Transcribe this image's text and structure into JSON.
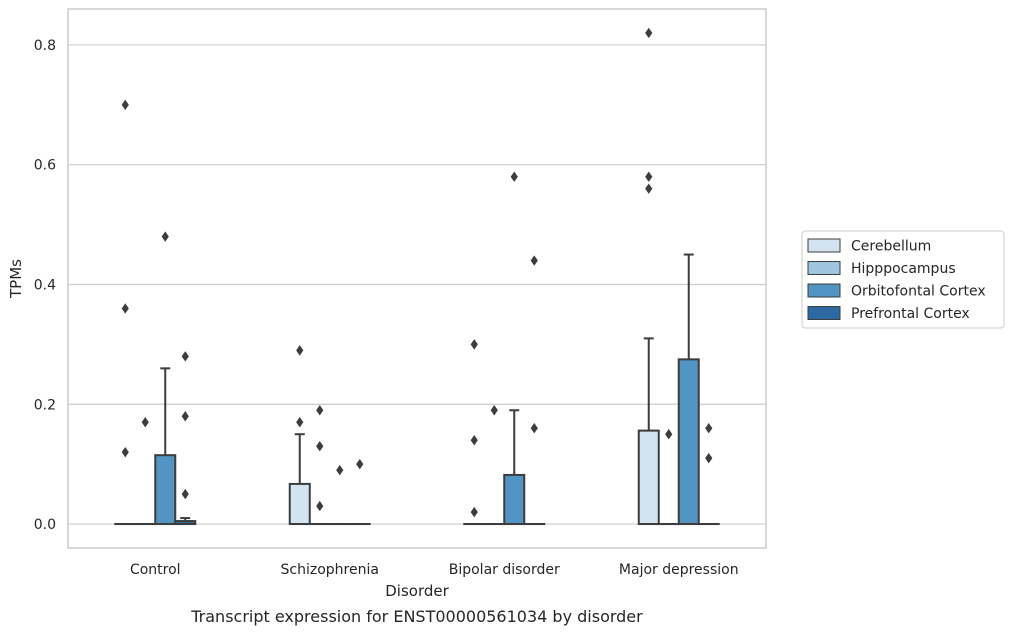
{
  "chart_data": {
    "type": "box",
    "caption": "Transcript expression for ENST00000561034 by disorder",
    "xlabel": "Disorder",
    "ylabel": "TPMs",
    "ylim": [
      -0.04,
      0.86
    ],
    "yticks": [
      "0.0",
      "0.2",
      "0.4",
      "0.6",
      "0.8"
    ],
    "grid": true,
    "legend_position": "right",
    "categories": [
      "Control",
      "Schizophrenia",
      "Bipolar disorder",
      "Major depression"
    ],
    "series": [
      {
        "name": "Cerebellum",
        "color": "#d4e3f2",
        "boxes": [
          {
            "q1": 0,
            "median": 0,
            "q3": 0,
            "whisker_low": 0,
            "whisker_high": 0,
            "outliers": [
              0.7,
              0.36,
              0.12
            ]
          },
          {
            "q1": 0,
            "median": 0,
            "q3": 0.067,
            "whisker_low": 0,
            "whisker_high": 0.15,
            "outliers": [
              0.29,
              0.17
            ]
          },
          {
            "q1": 0,
            "median": 0,
            "q3": 0,
            "whisker_low": 0,
            "whisker_high": 0,
            "outliers": [
              0.3,
              0.14,
              0.02
            ]
          },
          {
            "q1": 0,
            "median": 0,
            "q3": 0.156,
            "whisker_low": 0,
            "whisker_high": 0.31,
            "outliers": [
              0.82,
              0.58,
              0.56
            ]
          }
        ]
      },
      {
        "name": "Hipppocampus",
        "color": "#9fc4de",
        "boxes": [
          {
            "q1": 0,
            "median": 0,
            "q3": 0,
            "whisker_low": 0,
            "whisker_high": 0,
            "outliers": [
              0.17
            ]
          },
          {
            "q1": 0,
            "median": 0,
            "q3": 0,
            "whisker_low": 0,
            "whisker_high": 0,
            "outliers": [
              0.19,
              0.13,
              0.03
            ]
          },
          {
            "q1": 0,
            "median": 0,
            "q3": 0,
            "whisker_low": 0,
            "whisker_high": 0,
            "outliers": [
              0.19
            ]
          },
          {
            "q1": 0,
            "median": 0,
            "q3": 0,
            "whisker_low": 0,
            "whisker_high": 0,
            "outliers": [
              0.15
            ]
          }
        ]
      },
      {
        "name": "Orbitofontal Cortex",
        "color": "#5294c4",
        "boxes": [
          {
            "q1": 0,
            "median": 0,
            "q3": 0.115,
            "whisker_low": 0,
            "whisker_high": 0.26,
            "outliers": [
              0.48
            ]
          },
          {
            "q1": 0,
            "median": 0,
            "q3": 0,
            "whisker_low": 0,
            "whisker_high": 0,
            "outliers": [
              0.09
            ]
          },
          {
            "q1": 0,
            "median": 0,
            "q3": 0.082,
            "whisker_low": 0,
            "whisker_high": 0.19,
            "outliers": [
              0.58
            ]
          },
          {
            "q1": 0,
            "median": 0,
            "q3": 0.275,
            "whisker_low": 0,
            "whisker_high": 0.45,
            "outliers": []
          }
        ]
      },
      {
        "name": "Prefrontal Cortex",
        "color": "#2d6aa3",
        "boxes": [
          {
            "q1": 0,
            "median": 0,
            "q3": 0.005,
            "whisker_low": 0,
            "whisker_high": 0.01,
            "outliers": [
              0.28,
              0.18,
              0.05
            ]
          },
          {
            "q1": 0,
            "median": 0,
            "q3": 0,
            "whisker_low": 0,
            "whisker_high": 0,
            "outliers": [
              0.1
            ]
          },
          {
            "q1": 0,
            "median": 0,
            "q3": 0,
            "whisker_low": 0,
            "whisker_high": 0,
            "outliers": [
              0.44,
              0.16
            ]
          },
          {
            "q1": 0,
            "median": 0,
            "q3": 0,
            "whisker_low": 0,
            "whisker_high": 0,
            "outliers": [
              0.16,
              0.11
            ]
          }
        ]
      }
    ]
  }
}
